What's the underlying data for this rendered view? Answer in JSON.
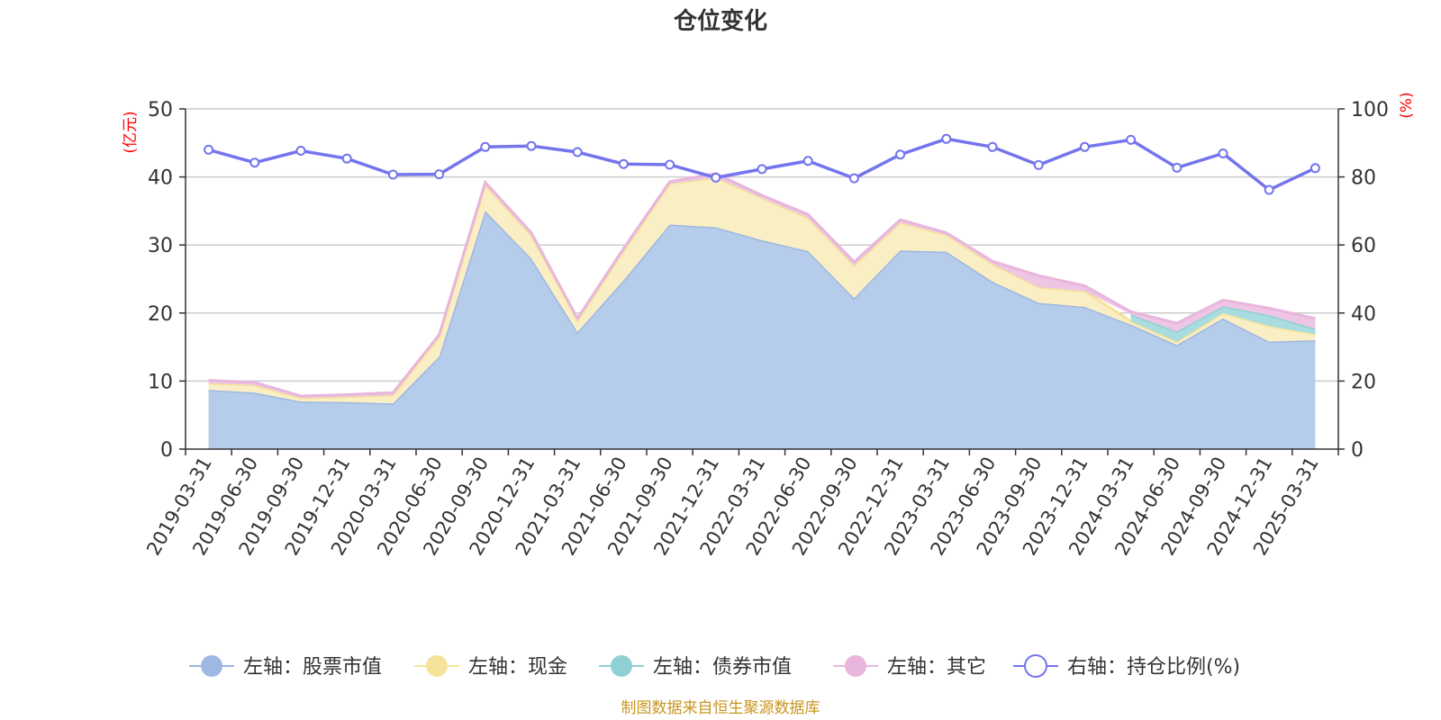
{
  "chart_data": {
    "type": "area",
    "title": "仓位变化",
    "left_unit": "(亿元)",
    "right_unit": "(%)",
    "left_ylim": [
      0,
      50
    ],
    "left_ticks": [
      "0",
      "10",
      "20",
      "30",
      "40",
      "50"
    ],
    "right_ylim": [
      0,
      100
    ],
    "right_ticks": [
      "0",
      "20",
      "40",
      "60",
      "80",
      "100"
    ],
    "grid": true,
    "legend_position": "bottom",
    "categories": [
      "2019-03-31",
      "2019-06-30",
      "2019-09-30",
      "2019-12-31",
      "2020-03-31",
      "2020-06-30",
      "2020-09-30",
      "2020-12-31",
      "2021-03-31",
      "2021-06-30",
      "2021-09-30",
      "2021-12-31",
      "2022-03-31",
      "2022-06-30",
      "2022-09-30",
      "2022-12-31",
      "2023-03-31",
      "2023-06-30",
      "2023-09-30",
      "2023-12-31",
      "2024-03-31",
      "2024-06-30",
      "2024-09-30",
      "2024-12-31",
      "2025-03-31"
    ],
    "series": [
      {
        "name": "左轴：股票市值",
        "axis": "left",
        "kind": "stacked-area",
        "color": "#9db8e2",
        "fill": "#b6cceb",
        "values": [
          8.7,
          8.3,
          7.0,
          6.9,
          6.7,
          13.6,
          35.0,
          28.0,
          17.2,
          24.8,
          33.0,
          32.6,
          30.7,
          29.1,
          22.2,
          29.2,
          29.0,
          24.6,
          21.5,
          20.9,
          18.3,
          15.3,
          19.2,
          15.8,
          16.0
        ]
      },
      {
        "name": "左轴：现金",
        "axis": "left",
        "kind": "stacked-area",
        "color": "#f5e39a",
        "fill": "#faeec4",
        "values": [
          1.0,
          1.1,
          0.5,
          0.8,
          1.2,
          2.9,
          3.8,
          3.4,
          1.7,
          4.3,
          6.0,
          7.3,
          6.2,
          4.9,
          4.8,
          4.1,
          2.5,
          2.6,
          2.3,
          2.3,
          0.5,
          0.5,
          0.8,
          2.3,
          0.9
        ]
      },
      {
        "name": "左轴：债券市值",
        "axis": "left",
        "kind": "stacked-area",
        "color": "#8fd0d4",
        "fill": "#a9dcdf",
        "values": [
          0,
          0,
          0,
          0,
          0,
          0,
          0,
          0,
          0,
          0,
          0,
          0,
          0,
          0,
          0,
          0,
          0,
          0,
          0,
          0,
          1.0,
          1.5,
          1.0,
          1.6,
          0.8
        ]
      },
      {
        "name": "左轴：其它",
        "axis": "left",
        "kind": "stacked-area",
        "color": "#e8b6dc",
        "fill": "#eec6e4",
        "values": [
          0.4,
          0.4,
          0.3,
          0.3,
          0.4,
          0.3,
          0.4,
          0.4,
          0.3,
          0.4,
          0.3,
          0.6,
          0.4,
          0.5,
          0.5,
          0.4,
          0.3,
          0.4,
          1.7,
          0.8,
          0.4,
          1.2,
          0.9,
          1.0,
          1.5
        ]
      },
      {
        "name": "右轴：持仓比例(%)",
        "axis": "right",
        "kind": "line",
        "color": "#7474ee",
        "values": [
          88.0,
          84.2,
          87.7,
          85.4,
          80.7,
          80.8,
          88.8,
          89.1,
          87.3,
          83.8,
          83.6,
          79.8,
          82.3,
          84.7,
          79.6,
          86.6,
          91.2,
          88.8,
          83.5,
          88.8,
          90.9,
          82.7,
          86.9,
          76.2,
          82.6
        ]
      }
    ],
    "source_note": "制图数据来自恒生聚源数据库"
  }
}
